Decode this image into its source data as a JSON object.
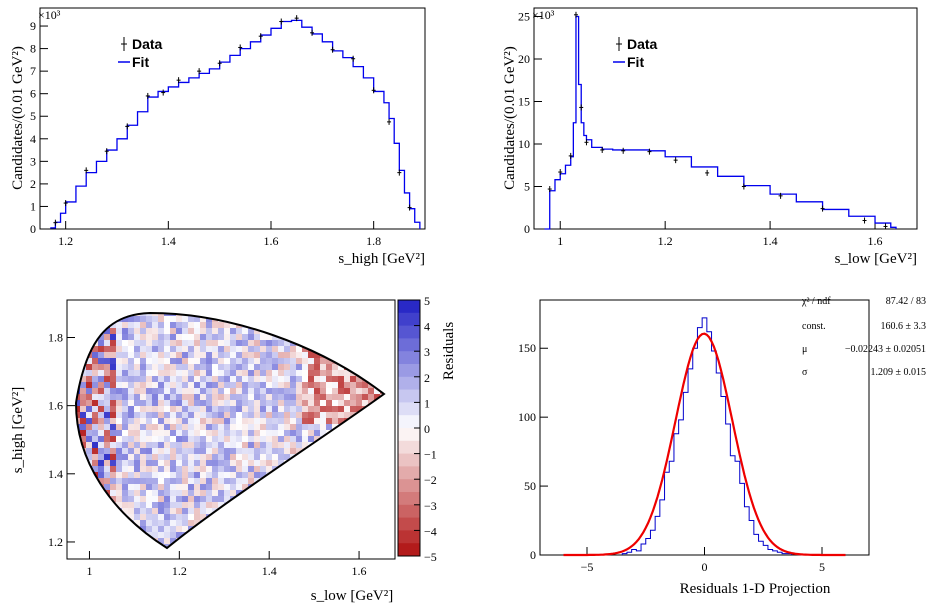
{
  "chart_data": [
    {
      "id": "p1",
      "type": "line",
      "title": "",
      "xlabel": "s_high [GeV²]",
      "ylabel": "Candidates/(0.01 GeV²)",
      "exponent_label": "×10³",
      "xlim": [
        1.15,
        1.9
      ],
      "ylim": [
        0,
        9.8
      ],
      "xticks": [
        1.2,
        1.4,
        1.6,
        1.8
      ],
      "xtick_labels": [
        "1.2",
        "1.4",
        "1.6",
        "1.8"
      ],
      "yticks": [
        0,
        1,
        2,
        3,
        4,
        5,
        6,
        7,
        8,
        9
      ],
      "ytick_labels": [
        "0",
        "1",
        "2",
        "3",
        "4",
        "5",
        "6",
        "7",
        "8",
        "9"
      ],
      "legend": [
        "Data",
        "Fit"
      ],
      "legend_position": "top-left",
      "series": [
        {
          "name": "Fit",
          "x": [
            1.17,
            1.18,
            1.19,
            1.2,
            1.22,
            1.24,
            1.26,
            1.28,
            1.3,
            1.32,
            1.34,
            1.36,
            1.38,
            1.4,
            1.42,
            1.44,
            1.46,
            1.48,
            1.5,
            1.52,
            1.54,
            1.56,
            1.58,
            1.6,
            1.62,
            1.64,
            1.66,
            1.68,
            1.7,
            1.72,
            1.74,
            1.76,
            1.78,
            1.8,
            1.82,
            1.83,
            1.84,
            1.85,
            1.86,
            1.87,
            1.88,
            1.89
          ],
          "values": [
            0.05,
            0.3,
            0.7,
            1.2,
            1.9,
            2.5,
            3.0,
            3.5,
            4.0,
            4.6,
            5.2,
            5.85,
            6.1,
            6.3,
            6.5,
            6.7,
            6.9,
            7.1,
            7.4,
            7.7,
            8.0,
            8.3,
            8.6,
            8.9,
            9.2,
            9.25,
            8.95,
            8.65,
            8.3,
            7.9,
            7.6,
            7.2,
            6.7,
            6.1,
            5.6,
            4.9,
            3.8,
            2.6,
            1.6,
            0.9,
            0.3,
            0.0
          ]
        },
        {
          "name": "Data",
          "x": [
            1.18,
            1.2,
            1.24,
            1.28,
            1.32,
            1.36,
            1.39,
            1.42,
            1.46,
            1.5,
            1.54,
            1.58,
            1.62,
            1.65,
            1.68,
            1.72,
            1.76,
            1.8,
            1.83,
            1.85,
            1.87
          ],
          "values": [
            0.28,
            1.15,
            2.6,
            3.45,
            4.55,
            5.9,
            6.05,
            6.6,
            7.0,
            7.35,
            8.05,
            8.55,
            9.2,
            9.35,
            8.7,
            7.95,
            7.55,
            6.15,
            4.75,
            2.5,
            0.95
          ]
        }
      ]
    },
    {
      "id": "p2",
      "type": "line",
      "title": "",
      "xlabel": "s_low [GeV²]",
      "ylabel": "Candidates/(0.01 GeV²)",
      "exponent_label": "×10³",
      "xlim": [
        0.95,
        1.68
      ],
      "ylim": [
        0,
        26
      ],
      "xticks": [
        1.0,
        1.2,
        1.4,
        1.6
      ],
      "xtick_labels": [
        "1",
        "1.2",
        "1.4",
        "1.6"
      ],
      "yticks": [
        0,
        5,
        10,
        15,
        20,
        25
      ],
      "ytick_labels": [
        "0",
        "5",
        "10",
        "15",
        "20",
        "25"
      ],
      "legend": [
        "Data",
        "Fit"
      ],
      "legend_position": "top-left",
      "series": [
        {
          "name": "Fit",
          "x": [
            0.97,
            0.98,
            0.99,
            1.0,
            1.01,
            1.02,
            1.025,
            1.03,
            1.035,
            1.04,
            1.045,
            1.05,
            1.06,
            1.08,
            1.1,
            1.15,
            1.17,
            1.2,
            1.25,
            1.3,
            1.35,
            1.4,
            1.45,
            1.5,
            1.55,
            1.6,
            1.63,
            1.64
          ],
          "values": [
            0.0,
            4.5,
            5.8,
            6.5,
            7.5,
            8.5,
            12.5,
            25.0,
            17.0,
            12.5,
            11.0,
            10.5,
            9.6,
            9.4,
            9.3,
            9.3,
            9.2,
            8.5,
            7.3,
            6.2,
            5.1,
            4.1,
            3.2,
            2.3,
            1.5,
            0.7,
            0.2,
            0.0
          ]
        },
        {
          "name": "Data",
          "x": [
            0.98,
            1.0,
            1.02,
            1.03,
            1.04,
            1.05,
            1.08,
            1.12,
            1.17,
            1.22,
            1.28,
            1.35,
            1.42,
            1.5,
            1.58,
            1.62
          ],
          "values": [
            4.7,
            6.7,
            8.6,
            25.2,
            14.3,
            10.2,
            9.3,
            9.2,
            9.1,
            8.1,
            6.6,
            5.0,
            3.9,
            2.4,
            1.0,
            0.3
          ]
        }
      ]
    },
    {
      "id": "p3",
      "type": "heatmap",
      "title": "",
      "xlabel": "s_low [GeV²]",
      "ylabel": "s_high [GeV²]",
      "xlim": [
        0.95,
        1.68
      ],
      "ylim": [
        1.15,
        1.91
      ],
      "xticks": [
        1.0,
        1.2,
        1.4,
        1.6
      ],
      "xtick_labels": [
        "1",
        "1.2",
        "1.4",
        "1.6"
      ],
      "yticks": [
        1.2,
        1.4,
        1.6,
        1.8
      ],
      "ytick_labels": [
        "1.2",
        "1.4",
        "1.6",
        "1.8"
      ],
      "colorbar_label": "Residuals",
      "zlim": [
        -5,
        5
      ],
      "colorbar_ticks": [
        5,
        4,
        3,
        2,
        1,
        0,
        -1,
        -2,
        -3,
        -4,
        -5
      ],
      "colorbar_tick_labels": [
        "5",
        "4",
        "3",
        "2",
        "1",
        "0",
        "−1",
        "−2",
        "−3",
        "−4",
        "−5"
      ],
      "boundary": {
        "left_vertex_y": 1.63,
        "right_vertex": [
          1.635,
          1.625
        ],
        "top_y": 1.895,
        "bottom": [
          1.17,
          1.17
        ]
      }
    },
    {
      "id": "p4",
      "type": "bar",
      "title": "",
      "xlabel": "Residuals 1-D Projection",
      "ylabel": "",
      "xlim": [
        -7,
        7
      ],
      "ylim": [
        0,
        185
      ],
      "xticks": [
        -5,
        0,
        5
      ],
      "xtick_labels": [
        "−5",
        "0",
        "5"
      ],
      "yticks": [
        0,
        50,
        100,
        150
      ],
      "ytick_labels": [
        "0",
        "50",
        "100",
        "150"
      ],
      "series": [
        {
          "name": "Residuals histogram",
          "x": [
            -3.4,
            -3.2,
            -3.0,
            -2.8,
            -2.6,
            -2.4,
            -2.2,
            -2.0,
            -1.8,
            -1.6,
            -1.4,
            -1.2,
            -1.0,
            -0.8,
            -0.6,
            -0.4,
            -0.2,
            0.0,
            0.2,
            0.4,
            0.6,
            0.8,
            1.0,
            1.2,
            1.4,
            1.6,
            1.8,
            2.0,
            2.2,
            2.4,
            2.6,
            2.8,
            3.0,
            3.2,
            3.4,
            3.6
          ],
          "values": [
            1,
            2,
            4,
            3,
            8,
            12,
            18,
            28,
            40,
            60,
            68,
            88,
            98,
            118,
            135,
            150,
            165,
            172,
            162,
            148,
            132,
            115,
            95,
            72,
            68,
            52,
            35,
            25,
            15,
            10,
            7,
            4,
            3,
            2,
            1,
            1
          ]
        },
        {
          "name": "Gaussian fit",
          "x": [
            -6,
            -5.5,
            -5,
            -4.5,
            -4,
            -3.5,
            -3,
            -2.5,
            -2,
            -1.5,
            -1,
            -0.5,
            0,
            0.5,
            1,
            1.5,
            2,
            2.5,
            3,
            3.5,
            4,
            4.5,
            5,
            5.5,
            6
          ],
          "values": [
            0,
            0,
            0.2,
            0.7,
            3.1,
            10.3,
            7.6,
            19.4,
            40.4,
            74.2,
            114.6,
            148.9,
            160.6,
            148.9,
            114.6,
            74.2,
            40.4,
            19.4,
            7.6,
            2.5,
            0.7,
            0.2,
            0,
            0,
            0
          ]
        }
      ],
      "stats": [
        {
          "label": "χ² / ndf",
          "value": "87.42 / 83"
        },
        {
          "label": "const.",
          "value": "160.6 ± 3.3"
        },
        {
          "label": "μ",
          "value": "−0.02243 ± 0.02051"
        },
        {
          "label": "σ",
          "value": "1.209 ± 0.015"
        }
      ]
    }
  ],
  "colors": {
    "fit": "#0000ee",
    "data": "#000000",
    "gauss": "#ee0000",
    "hist": "#0000cc",
    "frame": "#000000"
  }
}
